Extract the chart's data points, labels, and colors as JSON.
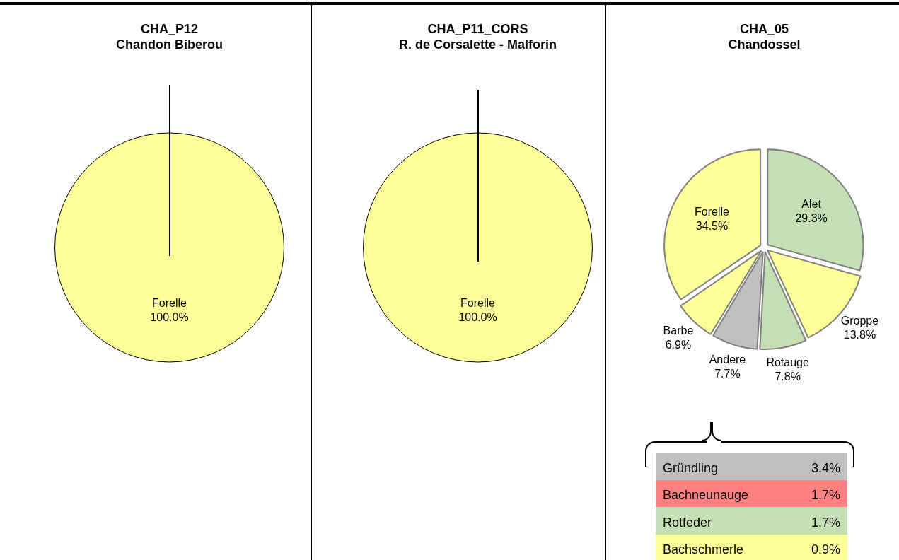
{
  "chart_data": [
    {
      "type": "pie",
      "title": "CHA_P12",
      "subtitle": "Chandon Biberou",
      "categories": [
        "Forelle"
      ],
      "values": [
        100.0
      ],
      "colors": [
        "#ffff99"
      ],
      "value_labels": [
        "100.0%"
      ]
    },
    {
      "type": "pie",
      "title": "CHA_P11_CORS",
      "subtitle": "R. de Corsalette - Malforin",
      "categories": [
        "Forelle"
      ],
      "values": [
        100.0
      ],
      "colors": [
        "#ffff99"
      ],
      "value_labels": [
        "100.0%"
      ]
    },
    {
      "type": "pie",
      "title": "CHA_05",
      "subtitle": "Chandossel",
      "categories": [
        "Alet",
        "Groppe",
        "Rotauge",
        "Andere",
        "Barbe",
        "Forelle"
      ],
      "values": [
        29.3,
        13.8,
        7.8,
        7.7,
        6.9,
        34.5
      ],
      "colors": [
        "#c4dfb4",
        "#ffff99",
        "#c4dfb4",
        "#c0c0c0",
        "#ffff99",
        "#ffff99"
      ],
      "value_labels": [
        "29.3%",
        "13.8%",
        "7.8%",
        "7.7%",
        "6.9%",
        "34.5%"
      ]
    },
    {
      "type": "other",
      "categories": [
        "Gründling",
        "Bachneunauge",
        "Rotfeder",
        "Bachschmerle"
      ],
      "colors": [
        "#c0c0c0",
        "#ff8080",
        "#c4dfb4",
        "#ffff99"
      ],
      "value_labels": [
        "3.4%",
        "1.7%",
        "1.7%",
        "0.9%"
      ]
    }
  ]
}
